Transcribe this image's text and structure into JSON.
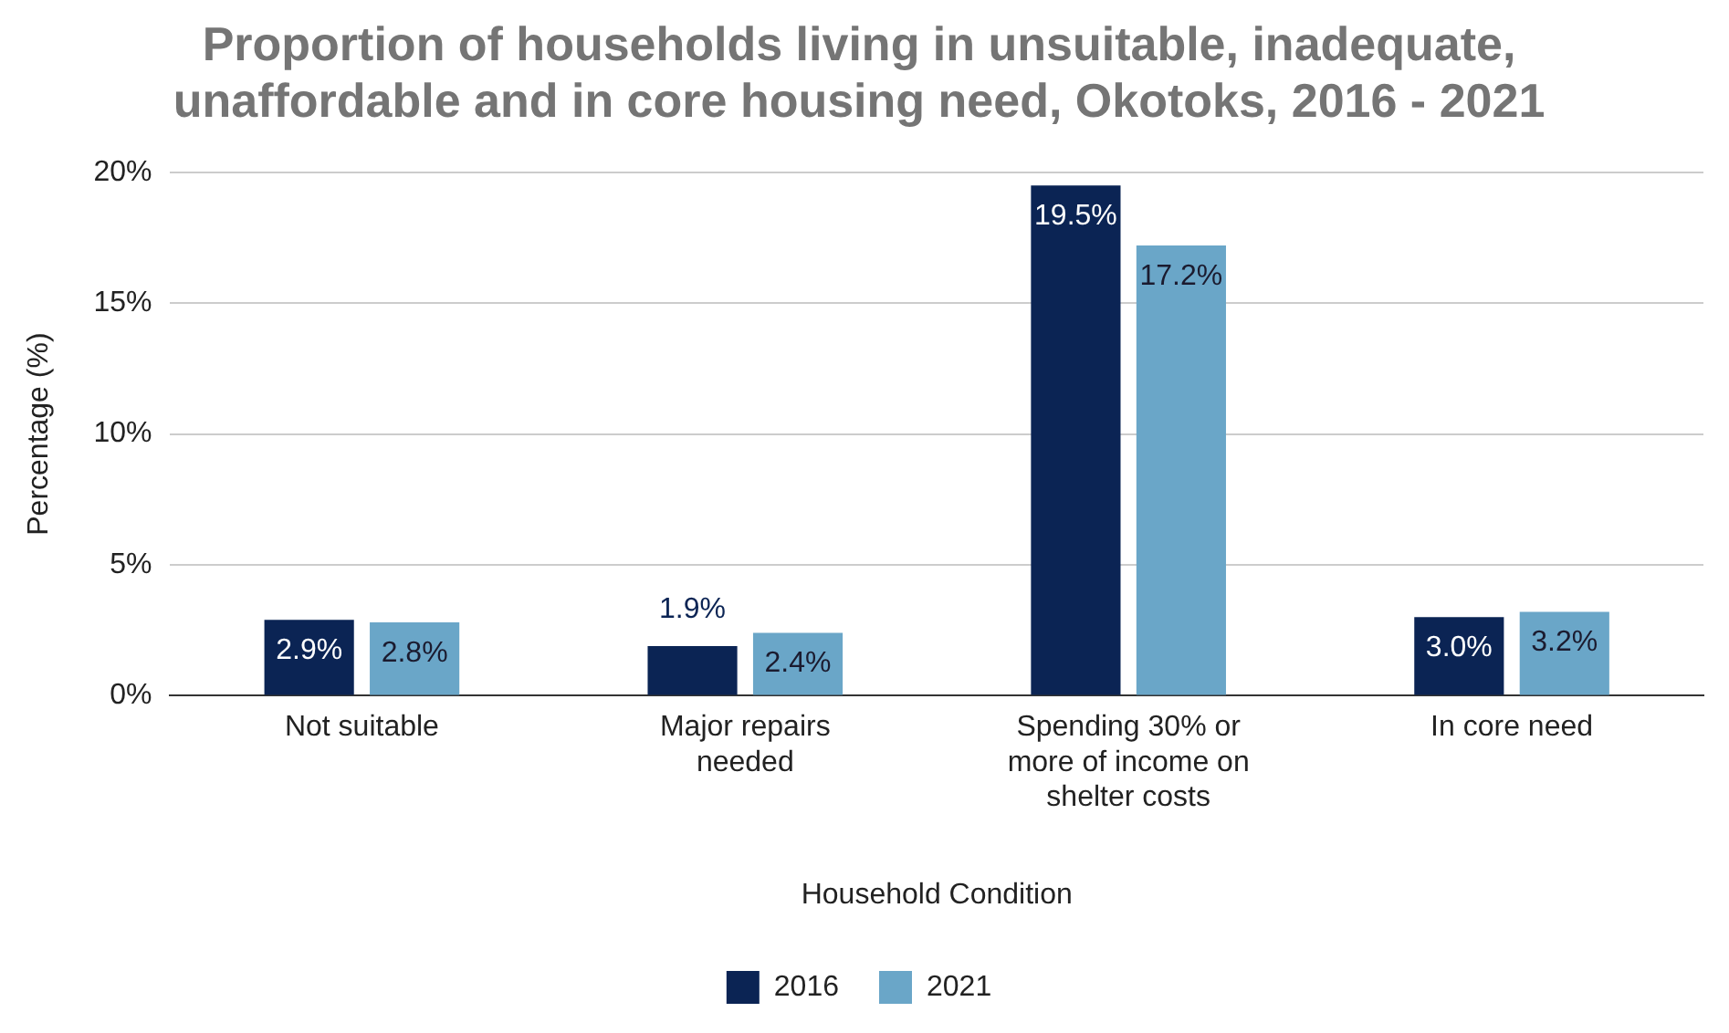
{
  "chart_data": {
    "type": "bar",
    "title": "Proportion of households living in unsuitable, inadequate, unaffordable and in core housing need, Okotoks, 2016 - 2021",
    "xlabel": "Household Condition",
    "ylabel": "Percentage (%)",
    "categories": [
      "Not suitable",
      "Major repairs needed",
      "Spending 30% or more of income on shelter costs",
      "In core need"
    ],
    "series": [
      {
        "name": "2016",
        "color": "#0b2454",
        "values": [
          2.9,
          1.9,
          19.5,
          3.0
        ],
        "value_labels": [
          "2.9%",
          "1.9%",
          "19.5%",
          "3.0%"
        ]
      },
      {
        "name": "2021",
        "color": "#6aa6c8",
        "values": [
          2.8,
          2.4,
          17.2,
          3.2
        ],
        "value_labels": [
          "2.8%",
          "2.4%",
          "17.2%",
          "3.2%"
        ]
      }
    ],
    "ylim": [
      0,
      20
    ],
    "yticks": [
      {
        "value": 0,
        "label": "0%"
      },
      {
        "value": 5,
        "label": "5%"
      },
      {
        "value": 10,
        "label": "10%"
      },
      {
        "value": 15,
        "label": "15%"
      },
      {
        "value": 20,
        "label": "20%"
      }
    ],
    "grid": "y",
    "legend": "bottom"
  }
}
